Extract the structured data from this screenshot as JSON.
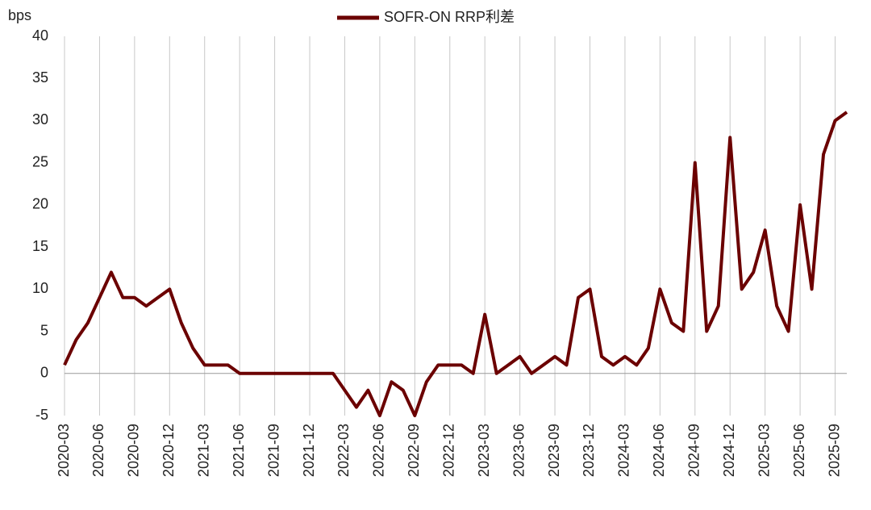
{
  "chart_data": {
    "type": "line",
    "y_label": "bps",
    "categories": [
      "2020-03",
      null,
      null,
      "2020-06",
      null,
      null,
      "2020-09",
      null,
      null,
      "2020-12",
      null,
      null,
      "2021-03",
      null,
      null,
      "2021-06",
      null,
      null,
      "2021-09",
      null,
      null,
      "2021-12",
      null,
      null,
      "2022-03",
      null,
      null,
      "2022-06",
      null,
      null,
      "2022-09",
      null,
      null,
      "2022-12",
      null,
      null,
      "2023-03",
      null,
      null,
      "2023-06",
      null,
      null,
      "2023-09",
      null,
      null,
      "2023-12",
      null,
      null,
      "2024-03",
      null,
      null,
      "2024-06",
      null,
      null,
      "2024-09",
      null,
      null,
      "2024-12",
      null,
      null,
      "2025-03",
      null,
      null,
      "2025-06",
      null,
      null,
      "2025-09",
      null
    ],
    "series": [
      {
        "name": "SOFR-ON RRP利差",
        "color": "#6b0000",
        "values": [
          1,
          4,
          6,
          9,
          12,
          9,
          9,
          8,
          9,
          10,
          6,
          3,
          1,
          1,
          1,
          0,
          0,
          0,
          0,
          0,
          0,
          0,
          0,
          0,
          -2,
          -4,
          -2,
          -5,
          -1,
          -2,
          -5,
          -1,
          1,
          1,
          1,
          0,
          7,
          0,
          1,
          2,
          0,
          1,
          2,
          1,
          9,
          10,
          2,
          1,
          2,
          1,
          3,
          10,
          6,
          5,
          25,
          5,
          8,
          28,
          10,
          12,
          17,
          8,
          5,
          20,
          10,
          26,
          30,
          31
        ]
      }
    ],
    "ylim": [
      -5,
      40
    ],
    "yticks": [
      -5,
      0,
      5,
      10,
      15,
      20,
      25,
      30,
      35,
      40
    ],
    "grid": true,
    "legend": "top"
  }
}
